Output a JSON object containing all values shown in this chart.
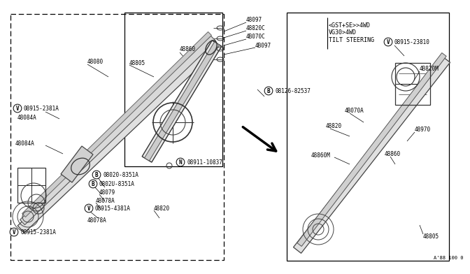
{
  "bg_color": "#ffffff",
  "line_color": "#000000",
  "text_color": "#000000",
  "watermark": "A'88 100 0",
  "annotation_top_right": "<GST+SE>>4WD\nVG30>4WD\nTILT STEERING"
}
